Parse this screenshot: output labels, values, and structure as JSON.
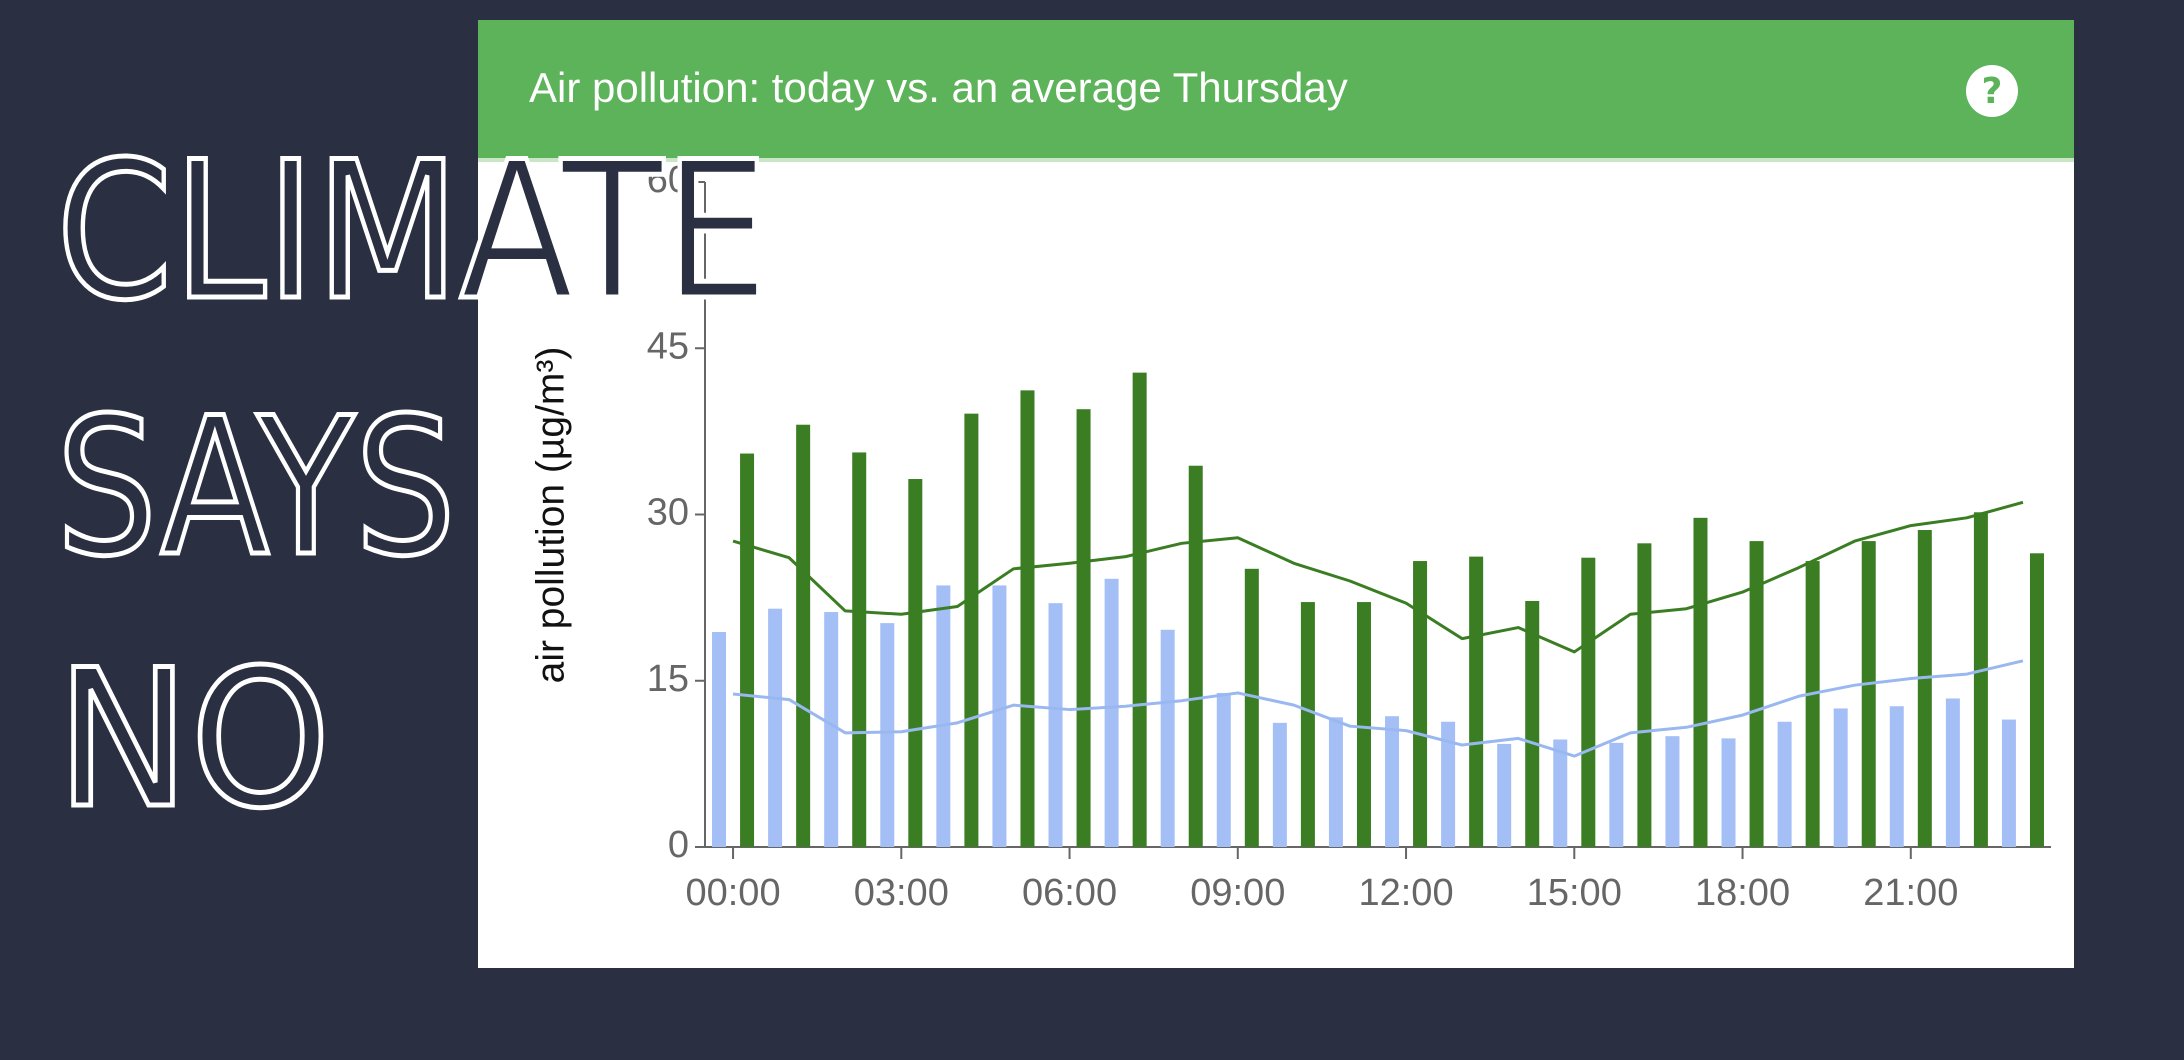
{
  "overlay": {
    "lines": [
      "CLIMATE",
      "SAYS",
      "NO"
    ]
  },
  "help_icon": "?",
  "chart_data": {
    "type": "bar",
    "title": "Air pollution: today vs. an average Thursday",
    "ylabel": "air pollution (µg/m³)",
    "x": [
      0,
      1,
      2,
      3,
      4,
      5,
      6,
      7,
      8,
      9,
      10,
      11,
      12,
      13,
      14,
      15,
      16,
      17,
      18,
      19,
      20,
      21,
      22,
      23
    ],
    "xlim": [
      -0.5,
      23.5
    ],
    "xticks": [
      {
        "value": 0,
        "label": "00:00"
      },
      {
        "value": 3,
        "label": "03:00"
      },
      {
        "value": 6,
        "label": "06:00"
      },
      {
        "value": 9,
        "label": "09:00"
      },
      {
        "value": 12,
        "label": "12:00"
      },
      {
        "value": 15,
        "label": "15:00"
      },
      {
        "value": 18,
        "label": "18:00"
      },
      {
        "value": 21,
        "label": "21:00"
      }
    ],
    "ylim": [
      0,
      60
    ],
    "yticks": [
      0,
      15,
      30,
      45,
      60
    ],
    "grid": false,
    "series": [
      {
        "type": "bar",
        "color": "#a4bff5",
        "values": [
          19.4,
          21.5,
          21.2,
          20.2,
          23.6,
          23.6,
          22.0,
          24.2,
          19.6,
          13.9,
          11.2,
          11.7,
          11.8,
          11.3,
          9.3,
          9.7,
          9.4,
          10.0,
          9.8,
          11.3,
          12.5,
          12.7,
          13.4,
          11.5
        ]
      },
      {
        "type": "bar",
        "color": "#3a7d22",
        "values": [
          35.5,
          38.1,
          35.6,
          33.2,
          39.1,
          41.2,
          39.5,
          42.8,
          34.4,
          25.1,
          22.1,
          22.1,
          25.8,
          26.2,
          22.2,
          26.1,
          27.4,
          29.7,
          27.6,
          25.8,
          27.6,
          28.6,
          30.2,
          26.5
        ]
      },
      {
        "type": "line",
        "color": "#3a7d22",
        "values": [
          27.6,
          26.1,
          21.3,
          21.0,
          21.7,
          25.1,
          25.6,
          26.2,
          27.4,
          27.9,
          25.6,
          24.0,
          22.0,
          18.8,
          19.8,
          17.6,
          21.0,
          21.5,
          23.0,
          25.2,
          27.6,
          29.0,
          29.7,
          31.1
        ]
      },
      {
        "type": "line",
        "color": "#9ab8f0",
        "values": [
          13.8,
          13.3,
          10.3,
          10.4,
          11.2,
          12.8,
          12.4,
          12.7,
          13.2,
          13.9,
          12.8,
          10.9,
          10.5,
          9.2,
          9.8,
          8.2,
          10.3,
          10.8,
          11.9,
          13.6,
          14.6,
          15.2,
          15.6,
          16.8
        ]
      }
    ]
  }
}
